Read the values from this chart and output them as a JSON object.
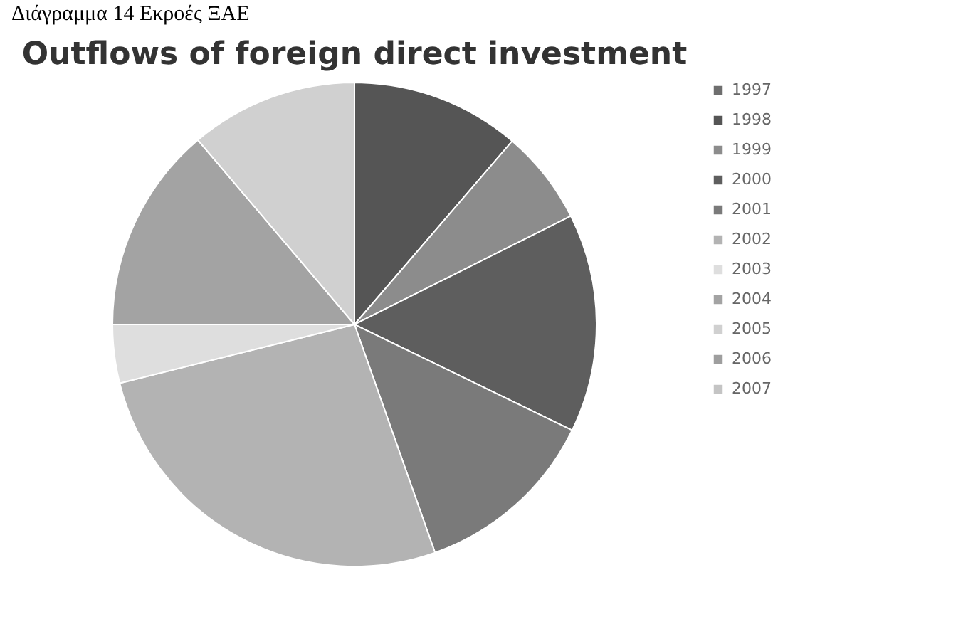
{
  "chart_data": {
    "type": "pie",
    "title": "Outflows of foreign direct investment",
    "annotations": [
      "Διάγραμμα 14 Εκροές ΞΑΕ"
    ],
    "categories": [
      "1997",
      "1998",
      "1999",
      "2000",
      "2001",
      "2002",
      "2003",
      "2004",
      "2005",
      "2006",
      "2007"
    ],
    "values": [
      0,
      11.3,
      6.3,
      14.6,
      12.4,
      26.5,
      3.9,
      13.8,
      11.2,
      0,
      0
    ],
    "colors": [
      "#6e6e6e",
      "#555555",
      "#8c8c8c",
      "#5e5e5e",
      "#7a7a7a",
      "#b3b3b3",
      "#dedede",
      "#a3a3a3",
      "#d0d0d0",
      "#9e9e9e",
      "#c4c4c4"
    ],
    "legend": "right"
  }
}
